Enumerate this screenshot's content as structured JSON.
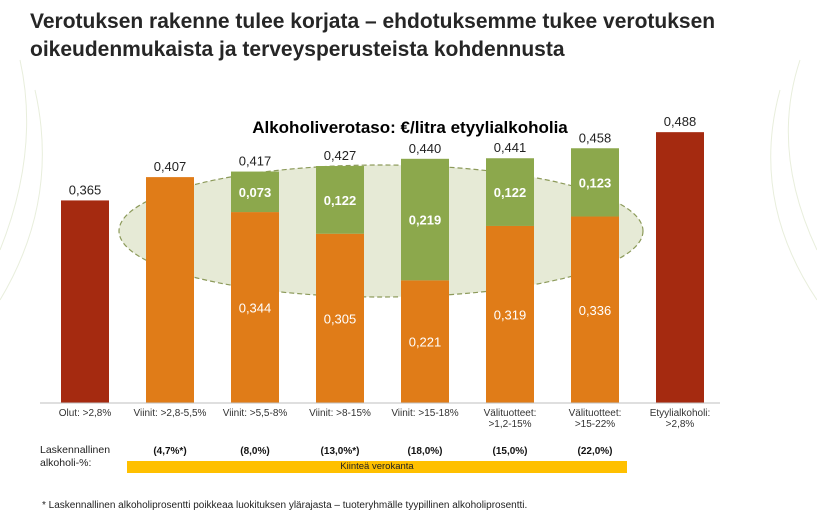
{
  "title": "Verotuksen rakenne tulee korjata – ehdotuksemme tukee verotuksen oikeudenmukaista ja terveysperusteista kohdennusta",
  "colors": {
    "standalone": "#a52a10",
    "base": "#e07c18",
    "increase": "#8ca84c",
    "ellipse_fill": "#e6ead6",
    "ellipse_stroke": "#8c9a5a",
    "band": "#ffc000",
    "decor": "#e8eedc"
  },
  "chart_data": {
    "type": "bar",
    "title": "Alkoholiverotaso: €/litra etyylialkoholia",
    "categories": [
      "Olut: >2,8%",
      "Viinit: >2,8-5,5%",
      "Viinit: >5,5-8%",
      "Viinit: >8-15%",
      "Viinit: >15-18%",
      "Välituotteet: >1,2-15%",
      "Välituotteet: >15-22%",
      "Etyylialkoholi: >2,8%"
    ],
    "category_lines": [
      [
        "Olut: >2,8%"
      ],
      [
        "Viinit: >2,8-5,5%"
      ],
      [
        "Viinit: >5,5-8%"
      ],
      [
        "Viinit: >8-15%"
      ],
      [
        "Viinit: >15-18%"
      ],
      [
        "Välituotteet:",
        ">1,2-15%"
      ],
      [
        "Välituotteet:",
        ">15-22%"
      ],
      [
        "Etyylialkoholi:",
        ">2,8%"
      ]
    ],
    "series": [
      {
        "role": "standalone",
        "values": [
          0.365,
          null,
          null,
          null,
          null,
          null,
          null,
          0.488
        ],
        "labels": [
          "0,365",
          "",
          "",
          "",
          "",
          "",
          "",
          "0,488"
        ]
      },
      {
        "role": "base",
        "values": [
          null,
          0.407,
          0.344,
          0.305,
          0.221,
          0.319,
          0.336,
          null
        ],
        "labels": [
          "",
          "0,407",
          "0,344",
          "0,305",
          "0,221",
          "0,319",
          "0,336",
          ""
        ]
      },
      {
        "role": "increase",
        "values": [
          null,
          null,
          0.073,
          0.122,
          0.219,
          0.122,
          0.123,
          null
        ],
        "labels": [
          "",
          "",
          "0,073",
          "0,122",
          "0,219",
          "0,122",
          "0,123",
          ""
        ]
      }
    ],
    "totals": [
      0.365,
      0.407,
      0.417,
      0.427,
      0.44,
      0.441,
      0.458,
      0.488
    ],
    "total_labels": [
      "",
      "0,407",
      "0,417",
      "0,427",
      "0,440",
      "0,441",
      "0,458",
      ""
    ],
    "ylim": [
      0,
      0.5
    ],
    "grid": false,
    "legend": "none"
  },
  "alcohol_pct": {
    "label": "Laskennallinen alkoholi-%:",
    "values": [
      "(4,7%*)",
      "(8,0%)",
      "(13,0%*)",
      "(18,0%)",
      "(15,0%)",
      "(22,0%)"
    ]
  },
  "band_label": "Kiinteä verokanta",
  "footnote": "* Laskennallinen alkoholiprosentti poikkeaa luokituksen ylärajasta – tuoteryhmälle tyypillinen alkoholiprosentti."
}
